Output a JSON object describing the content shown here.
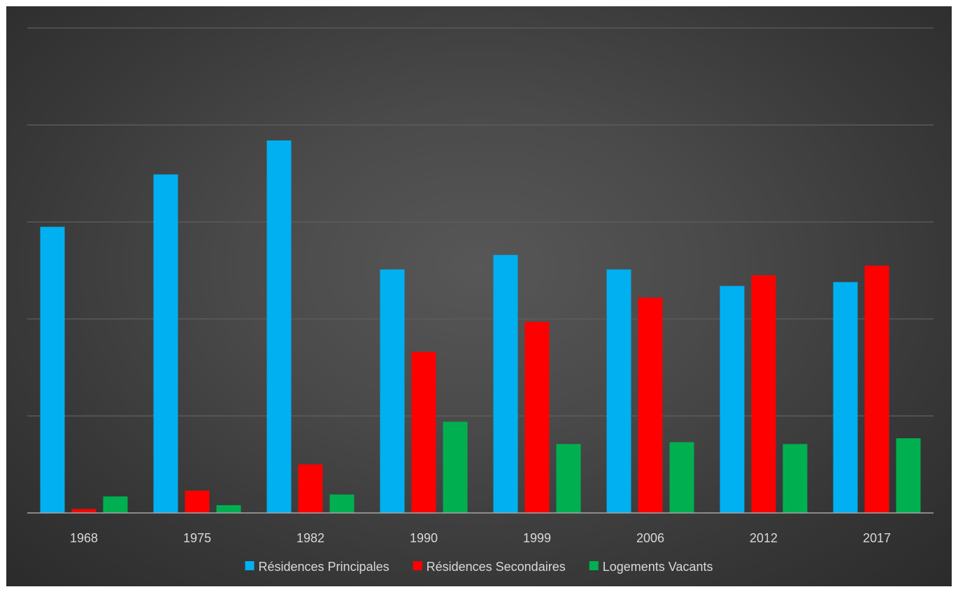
{
  "chart_data": {
    "type": "bar",
    "categories": [
      "1968",
      "1975",
      "1982",
      "1990",
      "1999",
      "2006",
      "2012",
      "2017"
    ],
    "series": [
      {
        "name": "Résidences Principales",
        "color": "#00b0f0",
        "values": [
          295,
          349,
          384,
          251,
          266,
          251,
          234,
          238
        ]
      },
      {
        "name": "Résidences Secondaires",
        "color": "#ff0000",
        "values": [
          4,
          23,
          50,
          166,
          197,
          222,
          245,
          255
        ]
      },
      {
        "name": "Logements Vacants",
        "color": "#00b050",
        "values": [
          17,
          8,
          19,
          94,
          71,
          73,
          71,
          77
        ]
      }
    ],
    "ylim": [
      0,
      500
    ],
    "yticks": [
      0,
      100,
      200,
      300,
      400,
      500
    ],
    "grid": true,
    "legend": "bottom"
  }
}
